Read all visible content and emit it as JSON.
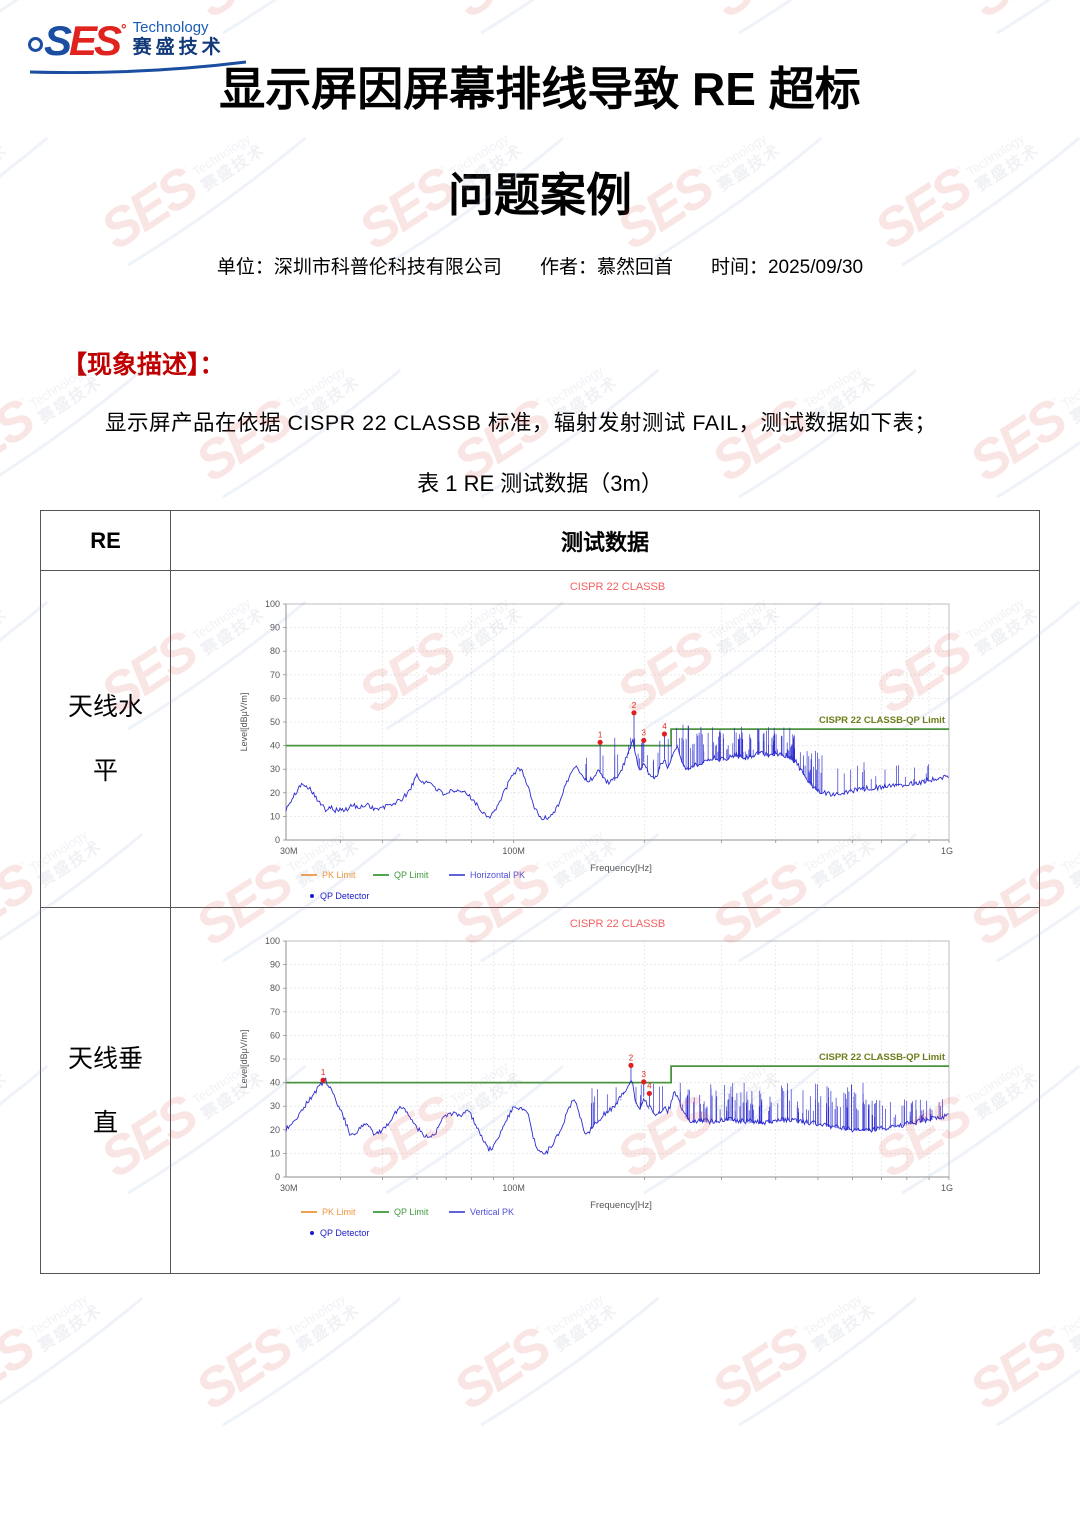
{
  "colors": {
    "heading_red": "#c00000",
    "logo_blue": "#1b4da0",
    "logo_red": "#e0231f",
    "wm_red": "#e34d4d",
    "wm_blue": "#8fa7d6",
    "wm_gray": "#97a3ba",
    "table_border": "#555555"
  },
  "page": {
    "logo": {
      "s": "S",
      "es": "ES",
      "degree": "°",
      "technology": "Technology",
      "chinese": "赛盛技术"
    },
    "title_line1": "显示屏因屏幕排线导致 RE 超标",
    "title_line2": "问题案例",
    "meta": {
      "unit_label": "单位：",
      "unit": "深圳市科普伦科技有限公司",
      "author_label": "作者：",
      "author": "慕然回首",
      "time_label": "时间：",
      "time": "2025/09/30"
    },
    "section_heading": "【现象描述】：",
    "paragraph": "显示屏产品在依据 CISPR 22 CLASSB 标准，辐射发射测试 FAIL，测试数据如下表；",
    "table_caption": "表 1 RE 测试数据（3m）",
    "watermark": {
      "text_main": "SES",
      "degree": "°",
      "text_tech": "Technology",
      "text_cn": "赛盛技术"
    }
  },
  "table": {
    "header": {
      "col1": "RE",
      "col2": "测试数据"
    },
    "rows": [
      {
        "label": "天线水平"
      },
      {
        "label": "天线垂直"
      }
    ]
  },
  "chart_data": [
    {
      "type": "line",
      "title": "CISPR 22 CLASSB",
      "xlabel": "Frequency[Hz]",
      "ylabel": "Level[dBμV/m]",
      "x_scale": "log",
      "x_range_mhz": [
        30,
        1000
      ],
      "x_ticks": [
        "30M",
        "100M",
        "1G"
      ],
      "ylim": [
        0,
        100
      ],
      "y_tick_step": 10,
      "grid": true,
      "legend_position": "bottom-left",
      "series_name": "Horizontal PK",
      "limit_label": "CISPR 22 CLASSB-QP Limit",
      "limit_segments_mhz_db": [
        [
          30,
          40
        ],
        [
          230,
          40
        ],
        [
          230,
          47
        ],
        [
          1000,
          47
        ]
      ],
      "noise_db": 1.1,
      "envelope_mhz_db": [
        [
          30,
          13
        ],
        [
          31,
          17
        ],
        [
          32,
          22
        ],
        [
          33,
          24
        ],
        [
          34,
          22
        ],
        [
          35,
          19
        ],
        [
          36,
          15
        ],
        [
          37,
          13
        ],
        [
          38,
          14.5
        ],
        [
          39,
          12.5
        ],
        [
          40,
          13
        ],
        [
          41,
          12.5
        ],
        [
          43,
          15
        ],
        [
          44,
          13
        ],
        [
          46,
          15.5
        ],
        [
          48,
          13
        ],
        [
          50,
          13.5
        ],
        [
          52,
          15
        ],
        [
          54,
          16
        ],
        [
          56,
          18
        ],
        [
          58,
          22
        ],
        [
          60,
          27.5
        ],
        [
          61,
          25
        ],
        [
          63,
          24.5
        ],
        [
          65,
          24
        ],
        [
          67,
          21
        ],
        [
          69,
          19.5
        ],
        [
          71,
          20.5
        ],
        [
          73,
          20
        ],
        [
          76,
          20.5
        ],
        [
          79,
          19
        ],
        [
          81,
          17
        ],
        [
          84,
          12.5
        ],
        [
          86,
          11
        ],
        [
          88,
          10
        ],
        [
          90,
          12
        ],
        [
          93,
          16
        ],
        [
          96,
          22
        ],
        [
          100,
          28
        ],
        [
          103,
          30.5
        ],
        [
          105,
          29
        ],
        [
          108,
          22
        ],
        [
          111,
          15
        ],
        [
          114,
          10.5
        ],
        [
          117,
          9
        ],
        [
          120,
          9.5
        ],
        [
          124,
          12
        ],
        [
          128,
          17
        ],
        [
          132,
          24
        ],
        [
          136,
          29
        ],
        [
          140,
          31
        ],
        [
          144,
          27
        ],
        [
          148,
          25
        ],
        [
          152,
          26
        ],
        [
          156,
          30
        ],
        [
          160,
          27
        ],
        [
          164,
          24.5
        ],
        [
          168,
          25
        ],
        [
          172,
          26
        ],
        [
          176,
          29
        ],
        [
          180,
          33
        ],
        [
          184,
          37
        ],
        [
          188,
          42
        ],
        [
          190,
          38
        ],
        [
          193,
          32
        ],
        [
          196,
          29
        ],
        [
          199,
          33
        ],
        [
          202,
          30
        ],
        [
          206,
          27
        ],
        [
          210,
          26.5
        ],
        [
          214,
          28
        ],
        [
          218,
          32
        ],
        [
          222,
          34
        ],
        [
          226,
          31
        ],
        [
          230,
          34
        ],
        [
          234,
          38
        ],
        [
          238,
          41
        ],
        [
          242,
          35
        ],
        [
          246,
          31
        ],
        [
          252,
          30
        ],
        [
          258,
          31
        ],
        [
          264,
          32
        ],
        [
          272,
          33
        ],
        [
          280,
          34
        ],
        [
          290,
          35
        ],
        [
          300,
          34
        ],
        [
          312,
          35
        ],
        [
          325,
          36
        ],
        [
          340,
          35
        ],
        [
          355,
          36
        ],
        [
          370,
          37
        ],
        [
          385,
          36
        ],
        [
          400,
          37
        ],
        [
          415,
          36
        ],
        [
          430,
          35
        ],
        [
          445,
          33
        ],
        [
          460,
          29
        ],
        [
          475,
          25
        ],
        [
          490,
          22
        ],
        [
          505,
          20.5
        ],
        [
          520,
          20
        ],
        [
          540,
          19.5
        ],
        [
          560,
          20
        ],
        [
          580,
          20.5
        ],
        [
          600,
          21
        ],
        [
          630,
          21.5
        ],
        [
          660,
          22
        ],
        [
          700,
          22.5
        ],
        [
          740,
          23
        ],
        [
          780,
          23.5
        ],
        [
          820,
          24
        ],
        [
          860,
          24.5
        ],
        [
          900,
          25.5
        ],
        [
          940,
          26
        ],
        [
          970,
          26.5
        ],
        [
          1000,
          27.5
        ]
      ],
      "spike_bands": [
        {
          "from_mhz": 145,
          "to_mhz": 235,
          "count": 22,
          "top_min": 32,
          "top_max": 44
        },
        {
          "from_mhz": 236,
          "to_mhz": 255,
          "count": 8,
          "top_min": 40,
          "top_max": 51
        },
        {
          "from_mhz": 255,
          "to_mhz": 450,
          "count": 95,
          "top_min": 36,
          "top_max": 48
        },
        {
          "from_mhz": 450,
          "to_mhz": 530,
          "count": 18,
          "top_min": 28,
          "top_max": 38
        },
        {
          "from_mhz": 530,
          "to_mhz": 980,
          "count": 20,
          "top_min": 25,
          "top_max": 33
        }
      ],
      "markers": [
        {
          "n": 1,
          "mhz": 158,
          "db": 41.4
        },
        {
          "n": 2,
          "mhz": 189,
          "db": 53.9
        },
        {
          "n": 3,
          "mhz": 199,
          "db": 42.2
        },
        {
          "n": 4,
          "mhz": 222,
          "db": 44.9
        }
      ],
      "legend": [
        {
          "label": "PK Limit",
          "color": "#f0953c",
          "type": "line"
        },
        {
          "label": "QP Limit",
          "color": "#3f9c3f",
          "type": "line"
        },
        {
          "label": "Horizontal PK",
          "color": "#5050d8",
          "type": "line"
        },
        {
          "label": "QP Detector",
          "color": "#1a1acc",
          "type": "dot"
        }
      ],
      "colors": {
        "trace": "#2b2bd0",
        "limit": "#4a9440",
        "title": "#f45f5f",
        "limit_label": "#6e7d1a"
      }
    },
    {
      "type": "line",
      "title": "CISPR 22 CLASSB",
      "xlabel": "Frequency[Hz]",
      "ylabel": "Level[dBμV/m]",
      "x_scale": "log",
      "x_range_mhz": [
        30,
        1000
      ],
      "x_ticks": [
        "30M",
        "100M",
        "1G"
      ],
      "ylim": [
        0,
        100
      ],
      "y_tick_step": 10,
      "grid": true,
      "legend_position": "bottom-left",
      "series_name": "Vertical PK",
      "limit_label": "CISPR 22 CLASSB-QP Limit",
      "limit_segments_mhz_db": [
        [
          30,
          40
        ],
        [
          230,
          40
        ],
        [
          230,
          47
        ],
        [
          1000,
          47
        ]
      ],
      "noise_db": 1.1,
      "envelope_mhz_db": [
        [
          30,
          20
        ],
        [
          32,
          26
        ],
        [
          34,
          33
        ],
        [
          36,
          39
        ],
        [
          37,
          41
        ],
        [
          38,
          37
        ],
        [
          39,
          33
        ],
        [
          40,
          28
        ],
        [
          41,
          24
        ],
        [
          42,
          18
        ],
        [
          43,
          17
        ],
        [
          44,
          20
        ],
        [
          45,
          21.5
        ],
        [
          46,
          22
        ],
        [
          47,
          20
        ],
        [
          48,
          18
        ],
        [
          49,
          18.5
        ],
        [
          50,
          19.5
        ],
        [
          52,
          24
        ],
        [
          54,
          28
        ],
        [
          55,
          30.5
        ],
        [
          56,
          29
        ],
        [
          58,
          25
        ],
        [
          60,
          21
        ],
        [
          62,
          18
        ],
        [
          64,
          17.5
        ],
        [
          66,
          18
        ],
        [
          68,
          23
        ],
        [
          70,
          26.5
        ],
        [
          72,
          27
        ],
        [
          74,
          26
        ],
        [
          76,
          26.5
        ],
        [
          78,
          27.5
        ],
        [
          80,
          26
        ],
        [
          82,
          22
        ],
        [
          84,
          18
        ],
        [
          86,
          14
        ],
        [
          88,
          11.5
        ],
        [
          90,
          13
        ],
        [
          93,
          18
        ],
        [
          96,
          24
        ],
        [
          99,
          28.5
        ],
        [
          102,
          29.5
        ],
        [
          105,
          29
        ],
        [
          108,
          26
        ],
        [
          110,
          19
        ],
        [
          113,
          12
        ],
        [
          116,
          10
        ],
        [
          119,
          10.5
        ],
        [
          122,
          13
        ],
        [
          126,
          17
        ],
        [
          130,
          23
        ],
        [
          134,
          29
        ],
        [
          137,
          33
        ],
        [
          140,
          30
        ],
        [
          143,
          24
        ],
        [
          146,
          18
        ],
        [
          149,
          19
        ],
        [
          152,
          22
        ],
        [
          156,
          24
        ],
        [
          160,
          26
        ],
        [
          165,
          28
        ],
        [
          170,
          30
        ],
        [
          175,
          33
        ],
        [
          180,
          36
        ],
        [
          184,
          39
        ],
        [
          187,
          41
        ],
        [
          190,
          33
        ],
        [
          193,
          29
        ],
        [
          196,
          30
        ],
        [
          199,
          34
        ],
        [
          202,
          31
        ],
        [
          205,
          30
        ],
        [
          208,
          28
        ],
        [
          211,
          27
        ],
        [
          214,
          26.5
        ],
        [
          218,
          28
        ],
        [
          222,
          30
        ],
        [
          226,
          28
        ],
        [
          230,
          31
        ],
        [
          234,
          36
        ],
        [
          238,
          34
        ],
        [
          242,
          30
        ],
        [
          248,
          26
        ],
        [
          254,
          24
        ],
        [
          260,
          23.5
        ],
        [
          270,
          24
        ],
        [
          280,
          23.5
        ],
        [
          295,
          24
        ],
        [
          310,
          24.5
        ],
        [
          330,
          24
        ],
        [
          350,
          23.5
        ],
        [
          375,
          23
        ],
        [
          400,
          24
        ],
        [
          430,
          24.5
        ],
        [
          460,
          23.5
        ],
        [
          500,
          22.5
        ],
        [
          540,
          21.5
        ],
        [
          580,
          20.5
        ],
        [
          620,
          20
        ],
        [
          660,
          20
        ],
        [
          700,
          20.5
        ],
        [
          750,
          21.5
        ],
        [
          800,
          22.5
        ],
        [
          850,
          23.5
        ],
        [
          900,
          24.5
        ],
        [
          950,
          25
        ],
        [
          1000,
          26
        ]
      ],
      "spike_bands": [
        {
          "from_mhz": 150,
          "to_mhz": 235,
          "count": 25,
          "top_min": 28,
          "top_max": 41
        },
        {
          "from_mhz": 236,
          "to_mhz": 650,
          "count": 120,
          "top_min": 27,
          "top_max": 40
        },
        {
          "from_mhz": 650,
          "to_mhz": 990,
          "count": 45,
          "top_min": 25,
          "top_max": 33
        }
      ],
      "markers": [
        {
          "n": 1,
          "mhz": 36.5,
          "db": 41.0
        },
        {
          "n": 2,
          "mhz": 186,
          "db": 47.3
        },
        {
          "n": 3,
          "mhz": 199,
          "db": 40.3
        },
        {
          "n": 4,
          "mhz": 205,
          "db": 35.4
        }
      ],
      "legend": [
        {
          "label": "PK Limit",
          "color": "#f0953c",
          "type": "line"
        },
        {
          "label": "QP Limit",
          "color": "#3f9c3f",
          "type": "line"
        },
        {
          "label": "Vertical PK",
          "color": "#5050d8",
          "type": "line"
        },
        {
          "label": "QP Detector",
          "color": "#1a1acc",
          "type": "dot"
        }
      ],
      "colors": {
        "trace": "#2b2bd0",
        "limit": "#4a9440",
        "title": "#f45f5f",
        "limit_label": "#6e7d1a"
      }
    }
  ]
}
